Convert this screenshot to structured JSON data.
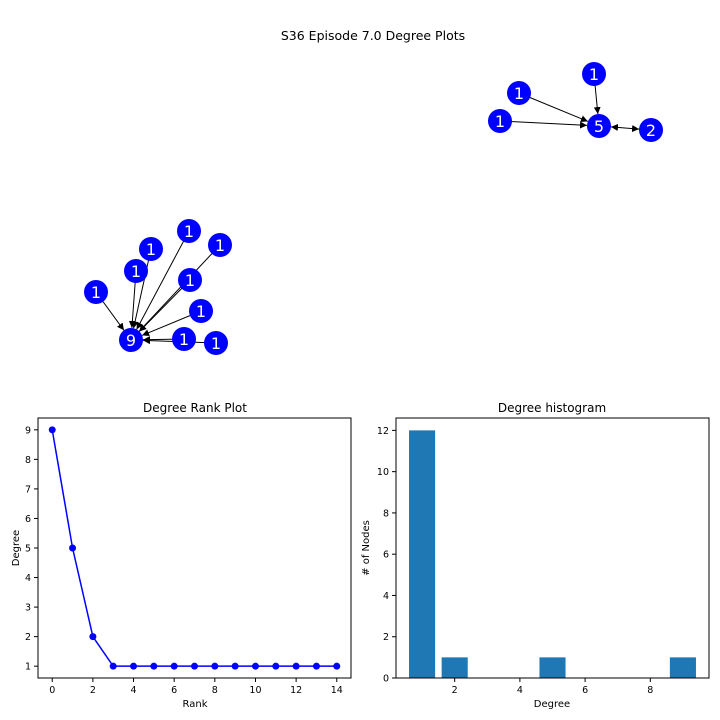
{
  "suptitle": "S36 Episode 7.0 Degree Plots",
  "colors": {
    "node": "#0000ff",
    "node_label": "#ffffff",
    "line": "#0000ff",
    "bar": "#1f77b4",
    "edge": "#000000"
  },
  "graph": {
    "components": [
      {
        "nodes": [
          {
            "id": "a0",
            "label": "5"
          },
          {
            "id": "a1",
            "label": "1"
          },
          {
            "id": "a2",
            "label": "1"
          },
          {
            "id": "a3",
            "label": "1"
          },
          {
            "id": "a4",
            "label": "2"
          }
        ],
        "edges": [
          [
            "a1",
            "a0"
          ],
          [
            "a2",
            "a0"
          ],
          [
            "a3",
            "a0"
          ],
          [
            "a0",
            "a4"
          ],
          [
            "a4",
            "a0"
          ]
        ]
      },
      {
        "nodes": [
          {
            "id": "b0",
            "label": "9"
          },
          {
            "id": "b1",
            "label": "1"
          },
          {
            "id": "b2",
            "label": "1"
          },
          {
            "id": "b3",
            "label": "1"
          },
          {
            "id": "b4",
            "label": "1"
          },
          {
            "id": "b5",
            "label": "1"
          },
          {
            "id": "b6",
            "label": "1"
          },
          {
            "id": "b7",
            "label": "1"
          },
          {
            "id": "b8",
            "label": "1"
          },
          {
            "id": "b9",
            "label": "1"
          }
        ],
        "edges": [
          [
            "b1",
            "b0"
          ],
          [
            "b2",
            "b0"
          ],
          [
            "b3",
            "b0"
          ],
          [
            "b4",
            "b0"
          ],
          [
            "b5",
            "b0"
          ],
          [
            "b6",
            "b0"
          ],
          [
            "b7",
            "b0"
          ],
          [
            "b8",
            "b0"
          ],
          [
            "b9",
            "b0"
          ]
        ]
      }
    ]
  },
  "chart_data": [
    {
      "type": "line",
      "title": "Degree Rank Plot",
      "xlabel": "Rank",
      "ylabel": "Degree",
      "x": [
        0,
        1,
        2,
        3,
        4,
        5,
        6,
        7,
        8,
        9,
        10,
        11,
        12,
        13,
        14
      ],
      "y": [
        9,
        5,
        2,
        1,
        1,
        1,
        1,
        1,
        1,
        1,
        1,
        1,
        1,
        1,
        1
      ],
      "xlim": [
        -0.7,
        14.7
      ],
      "ylim": [
        0.6,
        9.4
      ],
      "xticks": [
        0,
        2,
        4,
        6,
        8,
        10,
        12,
        14
      ],
      "yticks": [
        1,
        2,
        3,
        4,
        5,
        6,
        7,
        8,
        9
      ],
      "marker": "o",
      "grid": false
    },
    {
      "type": "bar",
      "title": "Degree histogram",
      "xlabel": "Degree",
      "ylabel": "# of Nodes",
      "categories": [
        1,
        2,
        5,
        9
      ],
      "values": [
        12,
        1,
        1,
        1
      ],
      "bar_width": 0.8,
      "xlim": [
        0.2,
        9.8
      ],
      "ylim": [
        0,
        12.6
      ],
      "xticks": [
        2,
        4,
        6,
        8
      ],
      "yticks": [
        0,
        2,
        4,
        6,
        8,
        10,
        12
      ],
      "grid": false
    }
  ]
}
